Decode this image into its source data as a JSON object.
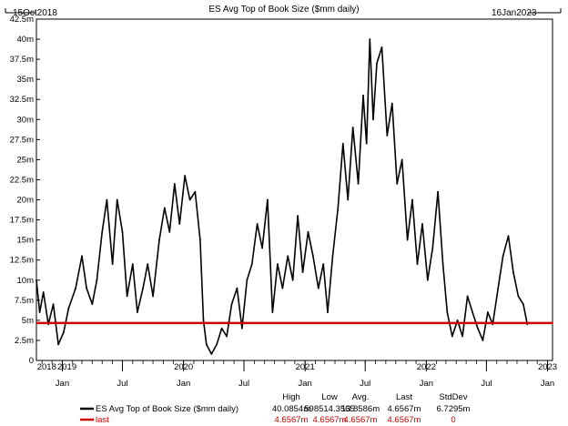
{
  "chart_data": {
    "type": "line",
    "title": "ES Avg Top of Book Size ($mm daily)",
    "start_label": "15Oct2018",
    "end_label": "16Jan2023",
    "x_range": [
      "2018-10-15",
      "2023-01-16"
    ],
    "ylim": [
      0,
      42500000
    ],
    "y_ticks": [
      "0",
      "2.5m",
      "5m",
      "7.5m",
      "10m",
      "12.5m",
      "15m",
      "17.5m",
      "20m",
      "22.5m",
      "25m",
      "27.5m",
      "30m",
      "32.5m",
      "35m",
      "37.5m",
      "40m",
      "42.5m"
    ],
    "x_month_ticks": [
      {
        "label": "Jan",
        "date": "2019-01-01"
      },
      {
        "label": "Jul",
        "date": "2019-07-01"
      },
      {
        "label": "Jan",
        "date": "2020-01-01"
      },
      {
        "label": "Jul",
        "date": "2020-07-01"
      },
      {
        "label": "Jan",
        "date": "2021-01-01"
      },
      {
        "label": "Jul",
        "date": "2021-07-01"
      },
      {
        "label": "Jan",
        "date": "2022-01-01"
      },
      {
        "label": "Jul",
        "date": "2022-07-01"
      },
      {
        "label": "Jan",
        "date": "2023-01-01"
      }
    ],
    "x_year_labels": [
      {
        "label": "2018",
        "date": "2018-11-15"
      },
      {
        "label": "2019",
        "date": "2019-01-15"
      },
      {
        "label": "2020",
        "date": "2020-01-01"
      },
      {
        "label": "2021",
        "date": "2021-01-01"
      },
      {
        "label": "2022",
        "date": "2022-01-01"
      },
      {
        "label": "2023",
        "date": "2023-01-01"
      }
    ],
    "series": [
      {
        "name": "ES Avg Top of Book Size ($mm daily)",
        "color": "#000000",
        "points": [
          [
            "2018-10-15",
            10000000
          ],
          [
            "2018-10-25",
            6000000
          ],
          [
            "2018-11-05",
            8500000
          ],
          [
            "2018-11-20",
            4500000
          ],
          [
            "2018-12-05",
            7000000
          ],
          [
            "2018-12-20",
            2000000
          ],
          [
            "2019-01-05",
            3500000
          ],
          [
            "2019-01-20",
            6500000
          ],
          [
            "2019-02-10",
            9000000
          ],
          [
            "2019-03-01",
            13000000
          ],
          [
            "2019-03-15",
            9000000
          ],
          [
            "2019-04-01",
            7000000
          ],
          [
            "2019-04-15",
            10000000
          ],
          [
            "2019-05-01",
            16000000
          ],
          [
            "2019-05-15",
            20000000
          ],
          [
            "2019-06-01",
            12000000
          ],
          [
            "2019-06-15",
            20000000
          ],
          [
            "2019-07-01",
            16000000
          ],
          [
            "2019-07-15",
            8000000
          ],
          [
            "2019-08-01",
            12000000
          ],
          [
            "2019-08-15",
            6000000
          ],
          [
            "2019-09-01",
            9000000
          ],
          [
            "2019-09-15",
            12000000
          ],
          [
            "2019-10-01",
            8000000
          ],
          [
            "2019-10-20",
            15000000
          ],
          [
            "2019-11-05",
            19000000
          ],
          [
            "2019-11-20",
            16000000
          ],
          [
            "2019-12-05",
            22000000
          ],
          [
            "2019-12-20",
            17000000
          ],
          [
            "2020-01-05",
            23000000
          ],
          [
            "2020-01-20",
            20000000
          ],
          [
            "2020-02-05",
            21000000
          ],
          [
            "2020-02-20",
            15000000
          ],
          [
            "2020-03-01",
            5000000
          ],
          [
            "2020-03-10",
            2000000
          ],
          [
            "2020-03-25",
            800000
          ],
          [
            "2020-04-10",
            2000000
          ],
          [
            "2020-04-25",
            4000000
          ],
          [
            "2020-05-10",
            3000000
          ],
          [
            "2020-05-25",
            7000000
          ],
          [
            "2020-06-10",
            9000000
          ],
          [
            "2020-06-25",
            4000000
          ],
          [
            "2020-07-10",
            10000000
          ],
          [
            "2020-07-25",
            12000000
          ],
          [
            "2020-08-10",
            17000000
          ],
          [
            "2020-08-25",
            14000000
          ],
          [
            "2020-09-10",
            20000000
          ],
          [
            "2020-09-25",
            6000000
          ],
          [
            "2020-10-10",
            12000000
          ],
          [
            "2020-10-25",
            9000000
          ],
          [
            "2020-11-10",
            13000000
          ],
          [
            "2020-11-25",
            10000000
          ],
          [
            "2020-12-10",
            18000000
          ],
          [
            "2020-12-25",
            11000000
          ],
          [
            "2021-01-10",
            16000000
          ],
          [
            "2021-01-25",
            13000000
          ],
          [
            "2021-02-10",
            9000000
          ],
          [
            "2021-02-25",
            12000000
          ],
          [
            "2021-03-10",
            6000000
          ],
          [
            "2021-03-25",
            13000000
          ],
          [
            "2021-04-10",
            19000000
          ],
          [
            "2021-04-25",
            27000000
          ],
          [
            "2021-05-10",
            20000000
          ],
          [
            "2021-05-25",
            29000000
          ],
          [
            "2021-06-10",
            22000000
          ],
          [
            "2021-06-25",
            33000000
          ],
          [
            "2021-07-05",
            27000000
          ],
          [
            "2021-07-15",
            40000000
          ],
          [
            "2021-07-25",
            30000000
          ],
          [
            "2021-08-05",
            37000000
          ],
          [
            "2021-08-20",
            39000000
          ],
          [
            "2021-09-05",
            28000000
          ],
          [
            "2021-09-20",
            32000000
          ],
          [
            "2021-10-05",
            22000000
          ],
          [
            "2021-10-20",
            25000000
          ],
          [
            "2021-11-05",
            15000000
          ],
          [
            "2021-11-20",
            20000000
          ],
          [
            "2021-12-05",
            12000000
          ],
          [
            "2021-12-20",
            17000000
          ],
          [
            "2022-01-05",
            10000000
          ],
          [
            "2022-01-20",
            14000000
          ],
          [
            "2022-02-05",
            21000000
          ],
          [
            "2022-02-20",
            12000000
          ],
          [
            "2022-03-05",
            6000000
          ],
          [
            "2022-03-20",
            3000000
          ],
          [
            "2022-04-05",
            5000000
          ],
          [
            "2022-04-20",
            3000000
          ],
          [
            "2022-05-05",
            8000000
          ],
          [
            "2022-05-20",
            6000000
          ],
          [
            "2022-06-05",
            4000000
          ],
          [
            "2022-06-20",
            2500000
          ],
          [
            "2022-07-05",
            6000000
          ],
          [
            "2022-07-20",
            4500000
          ],
          [
            "2022-08-05",
            9000000
          ],
          [
            "2022-08-20",
            13000000
          ],
          [
            "2022-09-05",
            15500000
          ],
          [
            "2022-09-20",
            11000000
          ],
          [
            "2022-10-05",
            8000000
          ],
          [
            "2022-10-20",
            7000000
          ],
          [
            "2022-11-01",
            4500000
          ]
        ]
      },
      {
        "name": "last",
        "color": "#cc0000",
        "constant": 4656700
      }
    ],
    "legend": {
      "headers": [
        "High",
        "Low",
        "Avg.",
        "Last",
        "StdDev"
      ],
      "rows": [
        {
          "label": "ES Avg Top of Book Size ($mm daily)",
          "color": "#000000",
          "values": [
            "40.0854m",
            "598514.3565",
            "13.8586m",
            "4.6567m",
            "6.7295m"
          ]
        },
        {
          "label": "last",
          "color": "#cc0000",
          "values": [
            "4.6567m",
            "4.6567m",
            "4.6567m",
            "4.6567m",
            "0"
          ]
        }
      ]
    }
  }
}
